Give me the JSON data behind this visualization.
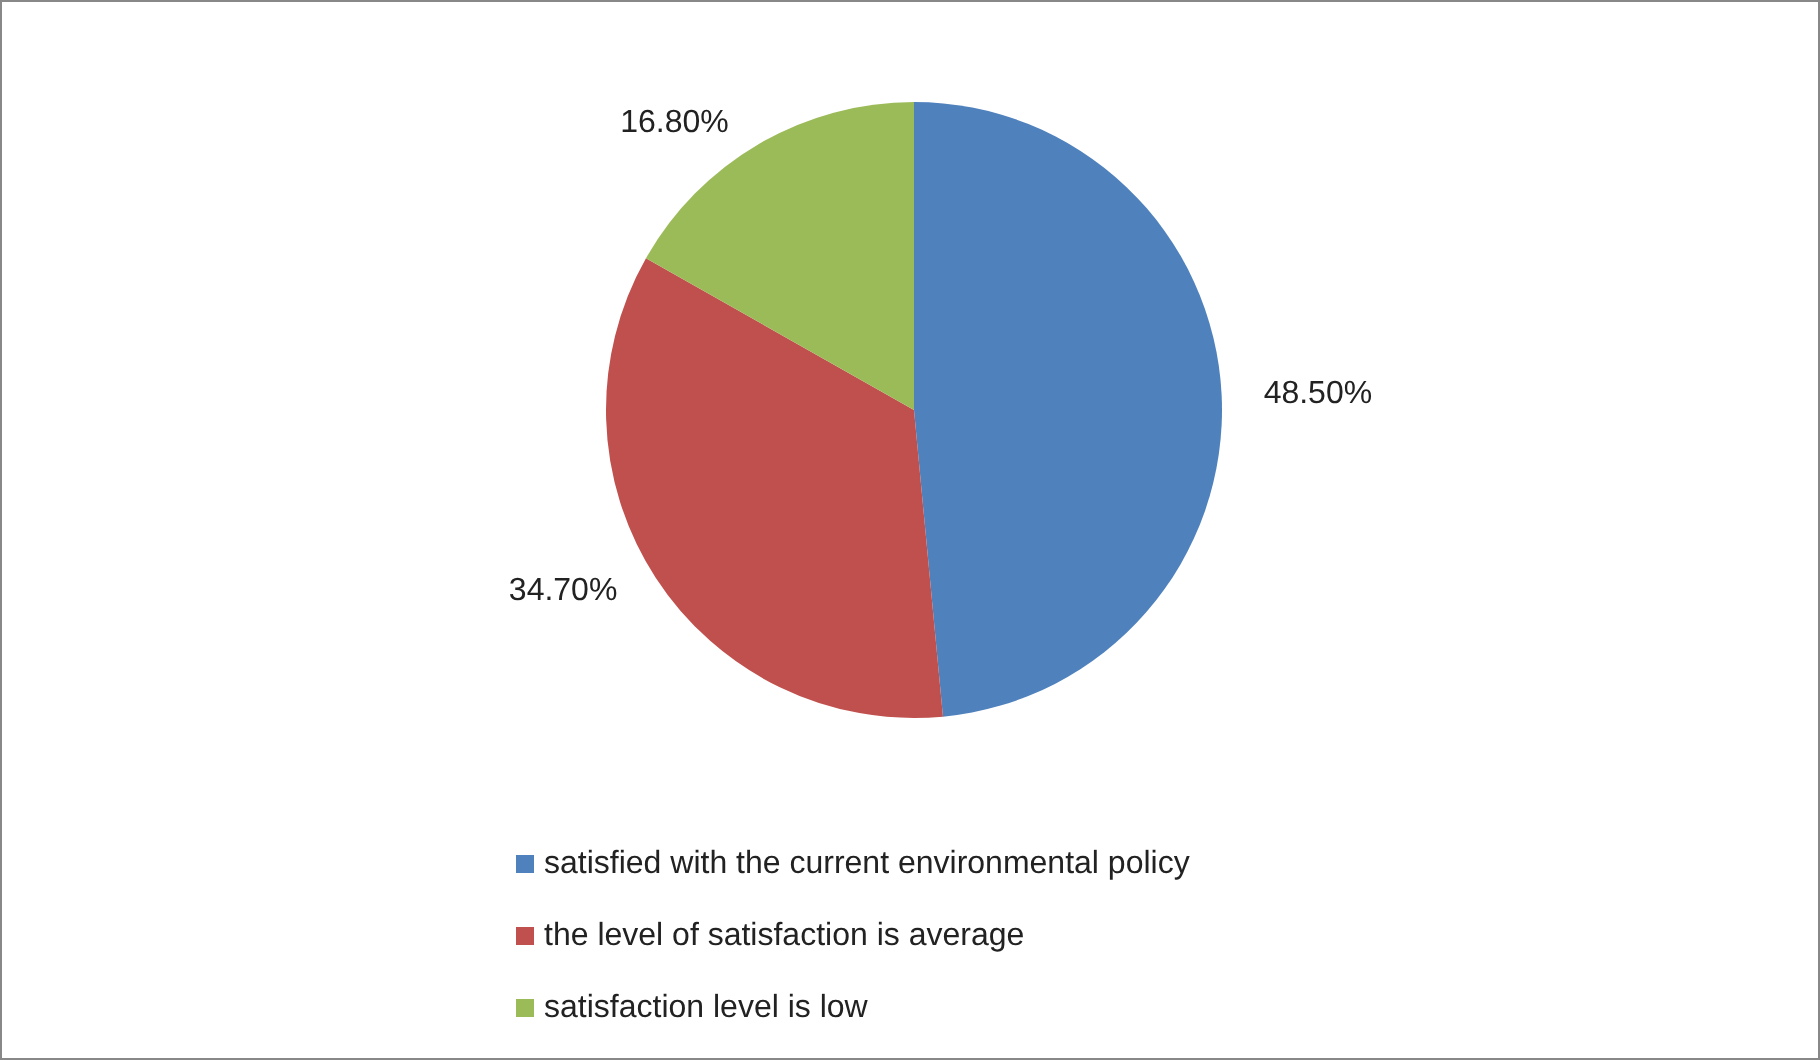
{
  "chart_data": {
    "type": "pie",
    "categories": [
      "satisfied with the current environmental policy",
      "the level of satisfaction is average",
      "satisfaction level is low"
    ],
    "values": [
      48.5,
      34.7,
      16.8
    ],
    "colors": [
      "#4f81bd",
      "#c0504d",
      "#9bbb59"
    ],
    "value_labels": [
      "48.50%",
      "34.70%",
      "16.80%"
    ],
    "legend": "bottom"
  }
}
